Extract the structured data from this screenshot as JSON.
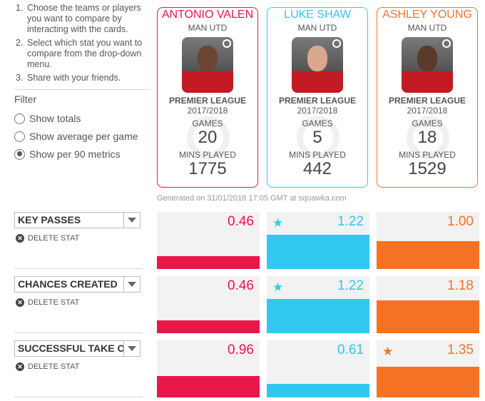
{
  "instructions": [
    {
      "num": "1.",
      "text": "Choose the teams or players you want to compare by interacting with the cards."
    },
    {
      "num": "2.",
      "text": "Select which stat you want to compare from the drop-down menu."
    },
    {
      "num": "3.",
      "text": "Share with your friends."
    }
  ],
  "filter": {
    "title": "Filter",
    "options": [
      {
        "label": "Show totals",
        "selected": false
      },
      {
        "label": "Show average per game",
        "selected": false
      },
      {
        "label": "Show per 90 metrics",
        "selected": true
      }
    ]
  },
  "players": [
    {
      "name": "ANTONIO VALEN",
      "club": "MAN UTD",
      "league": "PREMIER LEAGUE",
      "season": "2017/2018",
      "games_label": "GAMES",
      "games": "20",
      "mins_label": "MINS PLAYED",
      "mins": "1775",
      "color": "#e8174a",
      "skin": "#6b4633"
    },
    {
      "name": "LUKE SHAW",
      "club": "MAN UTD",
      "league": "PREMIER LEAGUE",
      "season": "2017/2018",
      "games_label": "GAMES",
      "games": "5",
      "mins_label": "MINS PLAYED",
      "mins": "442",
      "color": "#30c8ee",
      "skin": "#d9a88c"
    },
    {
      "name": "ASHLEY YOUNG",
      "club": "MAN UTD",
      "league": "PREMIER LEAGUE",
      "season": "2017/2018",
      "games_label": "GAMES",
      "games": "18",
      "mins_label": "MINS PLAYED",
      "mins": "1529",
      "color": "#f57224",
      "skin": "#5a3a2a"
    }
  ],
  "generated": "Generated on 31/01/2018 17:05 GMT at squawka.com",
  "delete_label": "DELETE STAT",
  "stats": [
    {
      "name": "KEY PASSES",
      "values": [
        {
          "text": "0.46",
          "fraction": 0.23,
          "star": false
        },
        {
          "text": "1.22",
          "fraction": 0.6,
          "star": true
        },
        {
          "text": "1.00",
          "fraction": 0.49,
          "star": false
        }
      ]
    },
    {
      "name": "CHANCES CREATED",
      "values": [
        {
          "text": "0.46",
          "fraction": 0.23,
          "star": false
        },
        {
          "text": "1.22",
          "fraction": 0.6,
          "star": true
        },
        {
          "text": "1.18",
          "fraction": 0.58,
          "star": false
        }
      ]
    },
    {
      "name": "SUCCESSFUL TAKE O",
      "values": [
        {
          "text": "0.96",
          "fraction": 0.38,
          "star": false
        },
        {
          "text": "0.61",
          "fraction": 0.24,
          "star": false
        },
        {
          "text": "1.35",
          "fraction": 0.54,
          "star": true
        }
      ]
    }
  ],
  "star_glyph": "★",
  "delete_glyph": "✕"
}
